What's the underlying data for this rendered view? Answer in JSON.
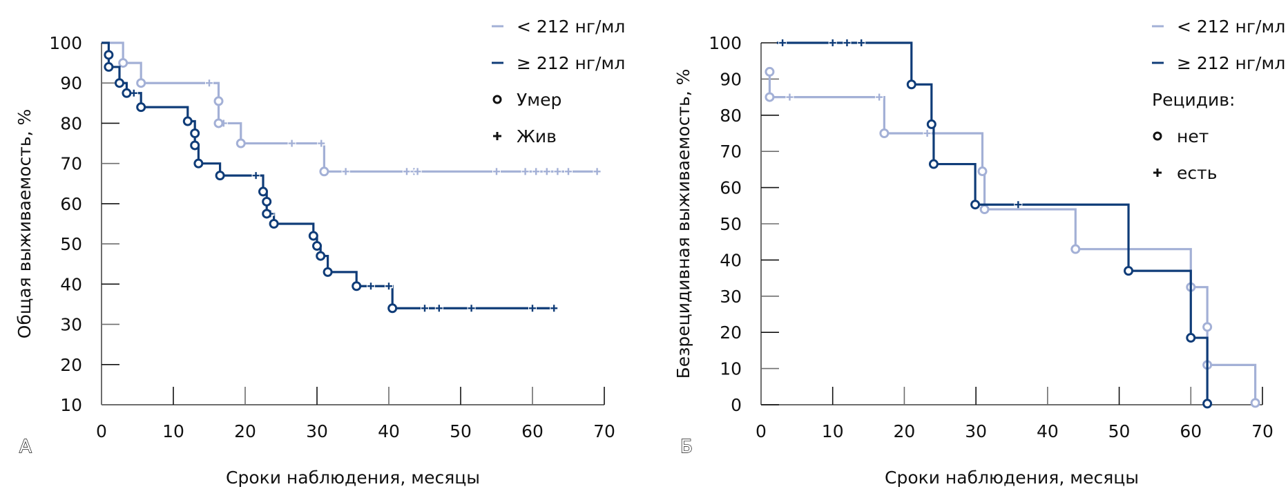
{
  "chart_data": [
    {
      "type": "line",
      "subtype": "kaplan-meier-step",
      "panel": "А",
      "title": "",
      "xlabel": "Сроки наблюдения, месяцы",
      "ylabel": "Общая выживаемость, %",
      "xlim": [
        0,
        70
      ],
      "ylim": [
        10,
        100
      ],
      "xticks": [
        0,
        10,
        20,
        30,
        40,
        50,
        60,
        70
      ],
      "yticks": [
        10,
        20,
        30,
        40,
        50,
        60,
        70,
        80,
        90,
        100
      ],
      "grid": false,
      "legend_position": "top-right",
      "legend": [
        {
          "marker": "line",
          "color_key": "low",
          "label": "< 212 нг/мл"
        },
        {
          "marker": "line",
          "color_key": "high",
          "label": "≥ 212 нг/мл"
        },
        {
          "marker": "circle",
          "label": "Умер"
        },
        {
          "marker": "plus",
          "label": "Жив"
        }
      ],
      "series": [
        {
          "name": "< 212 нг/мл",
          "color": "#a3b0d6",
          "steps": [
            [
              0,
              100
            ],
            [
              3,
              95
            ],
            [
              5.5,
              90
            ],
            [
              16.3,
              85.5
            ],
            [
              16.3,
              80
            ],
            [
              19.4,
              75
            ],
            [
              31,
              68
            ]
          ],
          "events": [
            [
              3,
              95
            ],
            [
              5.5,
              90
            ],
            [
              16.3,
              85.5
            ],
            [
              16.3,
              80
            ],
            [
              19.4,
              75
            ],
            [
              31,
              68
            ]
          ],
          "censored": [
            [
              15,
              90
            ],
            [
              17,
              80
            ],
            [
              26.5,
              75
            ],
            [
              30.6,
              75
            ],
            [
              34,
              68
            ],
            [
              42.5,
              68
            ],
            [
              43.5,
              68
            ],
            [
              44,
              68
            ],
            [
              55,
              68
            ],
            [
              59,
              68
            ],
            [
              60.5,
              68
            ],
            [
              62,
              68
            ],
            [
              63.5,
              68
            ],
            [
              65,
              68
            ],
            [
              69,
              68
            ]
          ],
          "end": 69
        },
        {
          "name": "≥ 212 нг/мл",
          "color": "#0f3c78",
          "steps": [
            [
              0,
              100
            ],
            [
              1,
              97
            ],
            [
              1,
              94
            ],
            [
              2.5,
              90
            ],
            [
              3.5,
              87.5
            ],
            [
              5.5,
              84
            ],
            [
              12,
              80.5
            ],
            [
              13,
              77.5
            ],
            [
              13,
              74.5
            ],
            [
              13.5,
              70
            ],
            [
              16.5,
              67
            ],
            [
              22.5,
              63
            ],
            [
              23,
              60.5
            ],
            [
              23,
              57.5
            ],
            [
              24,
              55
            ],
            [
              29.5,
              52
            ],
            [
              30,
              49.5
            ],
            [
              30.5,
              47
            ],
            [
              31.5,
              43
            ],
            [
              35.5,
              39.5
            ],
            [
              40.5,
              34
            ]
          ],
          "events": [
            [
              1,
              97
            ],
            [
              1,
              94
            ],
            [
              2.5,
              90
            ],
            [
              3.5,
              87.5
            ],
            [
              5.5,
              84
            ],
            [
              12,
              80.5
            ],
            [
              13,
              77.5
            ],
            [
              13,
              74.5
            ],
            [
              13.5,
              70
            ],
            [
              16.5,
              67
            ],
            [
              22.5,
              63
            ],
            [
              23,
              60.5
            ],
            [
              23,
              57.5
            ],
            [
              24,
              55
            ],
            [
              29.5,
              52
            ],
            [
              30,
              49.5
            ],
            [
              30.5,
              47
            ],
            [
              31.5,
              43
            ],
            [
              35.5,
              39.5
            ],
            [
              40.5,
              34
            ]
          ],
          "censored": [
            [
              4.5,
              87.5
            ],
            [
              21.5,
              67
            ],
            [
              23.5,
              57.5
            ],
            [
              37.5,
              39.5
            ],
            [
              40,
              39.5
            ],
            [
              45,
              34
            ],
            [
              47,
              34
            ],
            [
              51.5,
              34
            ],
            [
              60,
              34
            ],
            [
              63,
              34
            ]
          ],
          "end": 63
        }
      ]
    },
    {
      "type": "line",
      "subtype": "kaplan-meier-step",
      "panel": "Б",
      "title": "",
      "xlabel": "Сроки наблюдения, месяцы",
      "ylabel": "Безрецидивная выживаемость, %",
      "xlim": [
        0,
        70
      ],
      "ylim": [
        0,
        100
      ],
      "xticks": [
        0,
        10,
        20,
        30,
        40,
        50,
        60,
        70
      ],
      "yticks": [
        0,
        10,
        20,
        30,
        40,
        50,
        60,
        70,
        80,
        90,
        100
      ],
      "grid": false,
      "legend_position": "top-right",
      "legend_heading": "Рецидив:",
      "legend": [
        {
          "marker": "line",
          "color_key": "low",
          "label": "< 212 нг/мл"
        },
        {
          "marker": "line",
          "color_key": "high",
          "label": "≥ 212 нг/мл"
        },
        {
          "marker": "circle",
          "label": "нет"
        },
        {
          "marker": "plus",
          "label": "есть"
        }
      ],
      "series": [
        {
          "name": "< 212 нг/мл",
          "color": "#a3b0d6",
          "start": [
            1.2,
            92
          ],
          "steps": [
            [
              1.2,
              92
            ],
            [
              1.2,
              85
            ],
            [
              17.2,
              75
            ],
            [
              30.9,
              64.5
            ],
            [
              31.2,
              54
            ],
            [
              43.9,
              43
            ],
            [
              60,
              32.5
            ],
            [
              62.3,
              21.5
            ],
            [
              62.3,
              11
            ],
            [
              69,
              0.5
            ]
          ],
          "events": [
            [
              1.2,
              92
            ],
            [
              1.2,
              85
            ],
            [
              17.2,
              75
            ],
            [
              30.9,
              64.5
            ],
            [
              31.2,
              54
            ],
            [
              43.9,
              43
            ],
            [
              60,
              32.5
            ],
            [
              62.3,
              21.5
            ],
            [
              62.3,
              11
            ],
            [
              69,
              0.5
            ]
          ],
          "censored": [
            [
              4,
              85
            ],
            [
              16.5,
              85
            ],
            [
              23.2,
              75
            ]
          ],
          "end": 69
        },
        {
          "name": "≥ 212 нг/мл",
          "color": "#0f3c78",
          "start": [
            2.2,
            100
          ],
          "steps": [
            [
              2.2,
              100
            ],
            [
              21,
              88.5
            ],
            [
              23.8,
              77.5
            ],
            [
              24.1,
              66.5
            ],
            [
              29.9,
              55.3
            ],
            [
              51.3,
              37
            ],
            [
              60,
              18.5
            ],
            [
              62.3,
              0.3
            ]
          ],
          "events": [
            [
              21,
              88.5
            ],
            [
              23.8,
              77.5
            ],
            [
              24.1,
              66.5
            ],
            [
              29.9,
              55.3
            ],
            [
              51.3,
              37
            ],
            [
              60,
              18.5
            ],
            [
              62.3,
              0.3
            ]
          ],
          "censored": [
            [
              3,
              100
            ],
            [
              10,
              100
            ],
            [
              12,
              100
            ],
            [
              14,
              100
            ],
            [
              35.9,
              55.3
            ]
          ],
          "end": 62.3
        }
      ]
    }
  ],
  "colors": {
    "low": "#a3b0d6",
    "high": "#0f3c78",
    "axis": "#6d6d6d",
    "text": "#111111"
  },
  "panels": {
    "a": {
      "letter": "А",
      "legend_labels": [
        "< 212 нг/мл",
        "≥ 212 нг/мл",
        "Умер",
        "Жив"
      ]
    },
    "b": {
      "letter": "Б",
      "legend_labels": [
        "< 212 нг/мл",
        "≥ 212 нг/мл",
        "Рецидив:",
        "нет",
        "есть"
      ]
    }
  }
}
